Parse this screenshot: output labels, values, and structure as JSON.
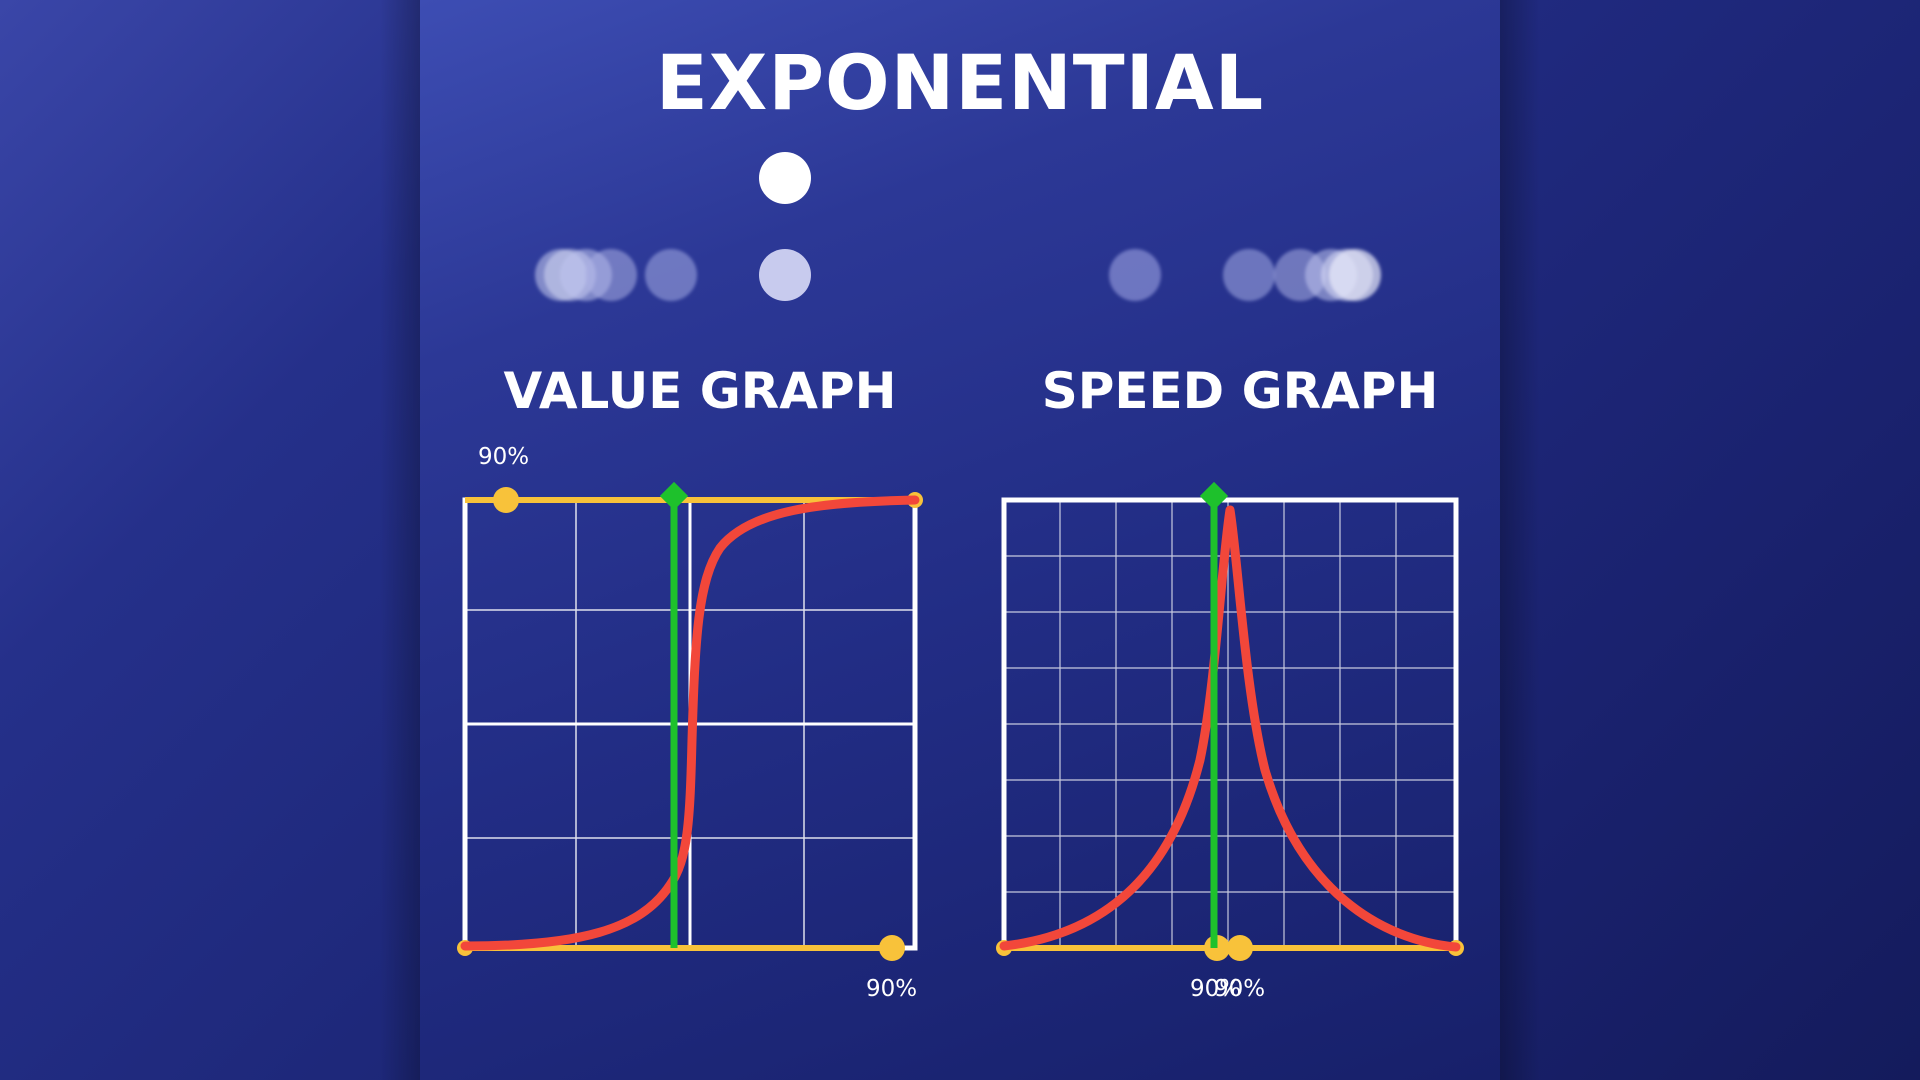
{
  "title": "EXPONENTIAL",
  "value_graph": {
    "title": "VALUE GRAPH",
    "top_label": "90%",
    "bottom_label": "90%"
  },
  "speed_graph": {
    "title": "SPEED GRAPH",
    "bottom_label_a": "90%",
    "bottom_label_b": "90%"
  },
  "colors": {
    "curve": "#f2473a",
    "handles": "#f8c23a",
    "marker": "#1ec12c",
    "grid": "#ffffff"
  }
}
